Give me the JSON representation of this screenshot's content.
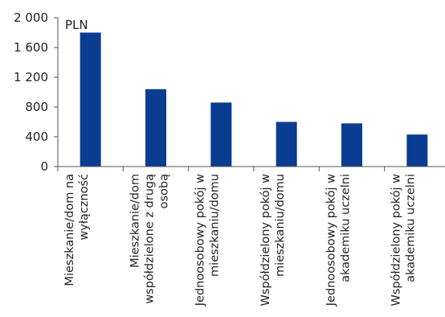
{
  "chart_data": {
    "type": "bar",
    "unit_label": "PLN",
    "categories": [
      [
        "Mieszkanie/dom na",
        "wyłączność"
      ],
      [
        "Mieszkanie/dom",
        "współdzielone z drugą",
        "osobą"
      ],
      [
        "Jednoosobowy pokój w",
        "mieszkaniu/domu"
      ],
      [
        "Współdzielony pokój w",
        "mieszkaniu/domu"
      ],
      [
        "Jednoosobowy pokój w",
        "akademiku uczelni"
      ],
      [
        "Współdzielony pokój w",
        "akademiku uczelni"
      ]
    ],
    "values": [
      1800,
      1040,
      860,
      600,
      580,
      430
    ],
    "ylim": [
      0,
      2000
    ],
    "yticks": [
      0,
      400,
      800,
      1200,
      1600,
      2000
    ],
    "ytick_labels": [
      "0",
      "400",
      "800",
      "1 200",
      "1 600",
      "2 000"
    ],
    "grid": false,
    "bar_color": "#0a3d91"
  }
}
